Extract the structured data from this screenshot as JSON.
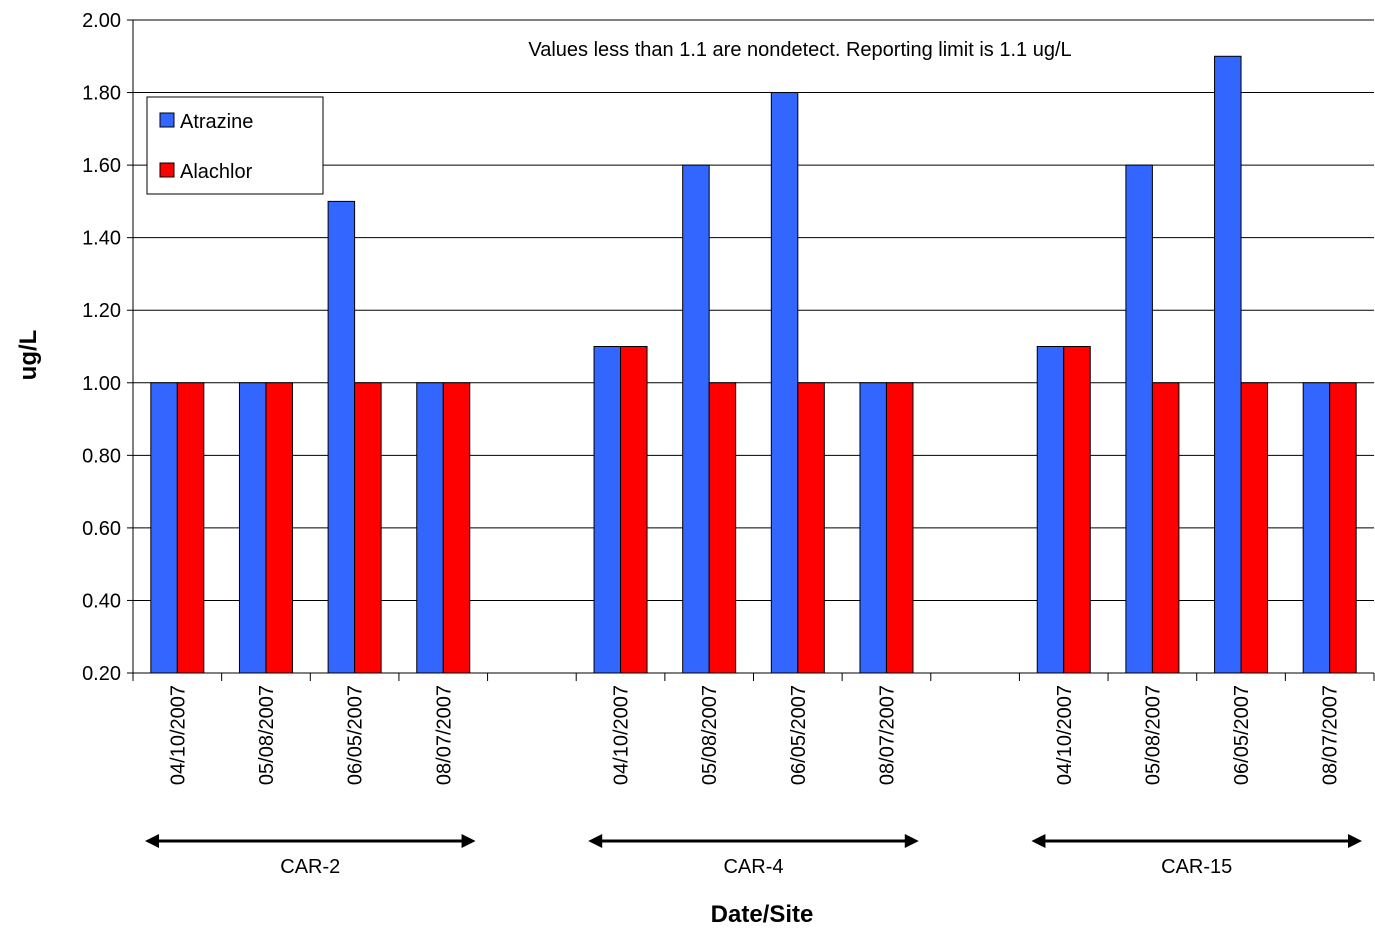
{
  "chart_data": {
    "type": "bar",
    "title": "",
    "annotation": "Values less than 1.1 are nondetect.  Reporting limit is 1.1 ug/L",
    "xlabel": "Date/Site",
    "ylabel": "ug/L",
    "ylim": [
      0.2,
      2.0
    ],
    "yticks": [
      "0.20",
      "0.40",
      "0.60",
      "0.80",
      "1.00",
      "1.20",
      "1.40",
      "1.60",
      "1.80",
      "2.00"
    ],
    "grid": true,
    "legend_position": "top-left",
    "categories": [
      "04/10/2007",
      "05/08/2007",
      "06/05/2007",
      "08/07/2007",
      "",
      "04/10/2007",
      "05/08/2007",
      "06/05/2007",
      "08/07/2007",
      "",
      "04/10/2007",
      "05/08/2007",
      "06/05/2007",
      "08/07/2007"
    ],
    "series": [
      {
        "name": "Atrazine",
        "color": "#3366ff",
        "values": [
          1.0,
          1.0,
          1.5,
          1.0,
          null,
          1.1,
          1.6,
          1.8,
          1.0,
          null,
          1.1,
          1.6,
          1.9,
          1.0
        ]
      },
      {
        "name": "Alachlor",
        "color": "#ff0000",
        "values": [
          1.0,
          1.0,
          1.0,
          1.0,
          null,
          1.1,
          1.0,
          1.0,
          1.0,
          null,
          1.1,
          1.0,
          1.0,
          1.0
        ]
      }
    ],
    "site_groups": [
      {
        "label": "CAR-2",
        "from": 0,
        "to": 3
      },
      {
        "label": "CAR-4",
        "from": 5,
        "to": 8
      },
      {
        "label": "CAR-15",
        "from": 10,
        "to": 13
      }
    ]
  }
}
